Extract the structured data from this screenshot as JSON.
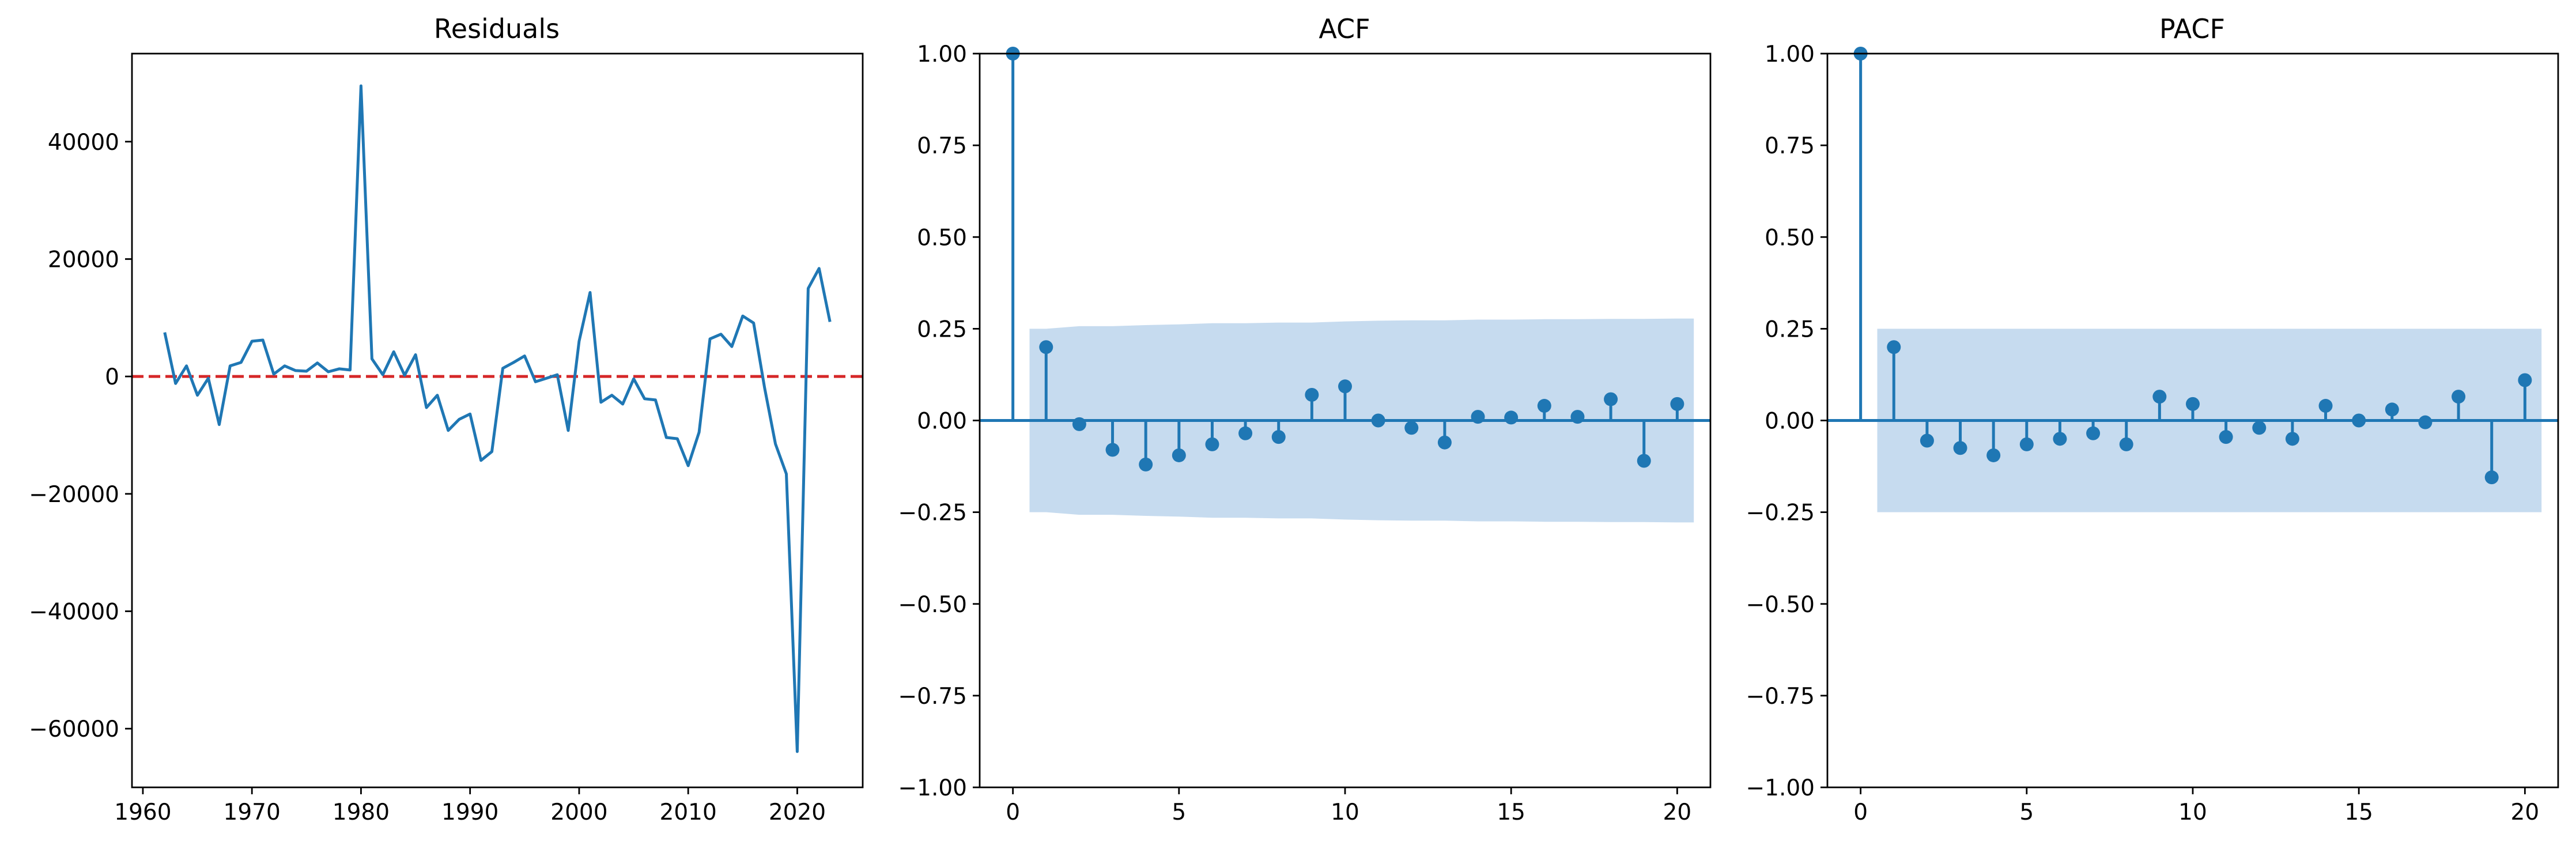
{
  "chart_data": [
    {
      "type": "line",
      "title": "Residuals",
      "xlabel": "",
      "ylabel": "",
      "xlim": [
        1959,
        2026
      ],
      "ylim": [
        -70000,
        55000
      ],
      "xticks": [
        1960,
        1970,
        1980,
        1990,
        2000,
        2010,
        2020
      ],
      "yticks": [
        -60000,
        -40000,
        -20000,
        0,
        20000,
        40000
      ],
      "zero_line": {
        "y": 0,
        "color": "#d62728",
        "style": "dashed"
      },
      "series": [
        {
          "color": "#1f77b4",
          "x": [
            1962,
            1963,
            1964,
            1965,
            1966,
            1967,
            1968,
            1969,
            1970,
            1971,
            1972,
            1973,
            1974,
            1975,
            1976,
            1977,
            1978,
            1979,
            1980,
            1981,
            1982,
            1983,
            1984,
            1985,
            1986,
            1987,
            1988,
            1989,
            1990,
            1991,
            1992,
            1993,
            1994,
            1995,
            1996,
            1997,
            1998,
            1999,
            2000,
            2001,
            2002,
            2003,
            2004,
            2005,
            2006,
            2007,
            2008,
            2009,
            2010,
            2011,
            2012,
            2013,
            2014,
            2015,
            2016,
            2017,
            2018,
            2019,
            2020,
            2021,
            2022,
            2023
          ],
          "y": [
            7500,
            -1200,
            1800,
            -3200,
            -300,
            -8200,
            1800,
            2400,
            6000,
            6200,
            400,
            1800,
            1000,
            900,
            2300,
            800,
            1300,
            1100,
            49500,
            3000,
            300,
            4200,
            200,
            3700,
            -5300,
            -3200,
            -9200,
            -7300,
            -6400,
            -14300,
            -12800,
            1400,
            2400,
            3500,
            -900,
            -300,
            300,
            -9200,
            6000,
            14300,
            -4400,
            -3200,
            -4700,
            -400,
            -3800,
            -4000,
            -10400,
            -10600,
            -15200,
            -9500,
            6400,
            7200,
            5100,
            10300,
            9100,
            -1900,
            -11500,
            -16600,
            -63900,
            15000,
            18400,
            9300
          ]
        }
      ]
    },
    {
      "type": "stem",
      "title": "ACF",
      "xlabel": "",
      "ylabel": "",
      "xlim": [
        -1,
        21
      ],
      "ylim": [
        -1.0,
        1.0
      ],
      "xticks": [
        0,
        5,
        10,
        15,
        20
      ],
      "yticks": [
        "-1.00",
        "-0.75",
        "-0.50",
        "-0.25",
        "0.00",
        "0.25",
        "0.50",
        "0.75",
        "1.00"
      ],
      "lags": [
        0,
        1,
        2,
        3,
        4,
        5,
        6,
        7,
        8,
        9,
        10,
        11,
        12,
        13,
        14,
        15,
        16,
        17,
        18,
        19,
        20
      ],
      "values": [
        1.0,
        0.2,
        -0.01,
        -0.08,
        -0.12,
        -0.095,
        -0.065,
        -0.035,
        -0.045,
        0.07,
        0.093,
        0.0,
        -0.02,
        -0.06,
        0.01,
        0.008,
        0.04,
        0.01,
        0.058,
        -0.11,
        0.045
      ],
      "confidence_band": {
        "lags": [
          0.5,
          1,
          2,
          3,
          4,
          5,
          6,
          7,
          8,
          9,
          10,
          11,
          12,
          13,
          14,
          15,
          16,
          17,
          18,
          19,
          20,
          20.5
        ],
        "upper": [
          0.25,
          0.25,
          0.257,
          0.257,
          0.26,
          0.262,
          0.265,
          0.265,
          0.267,
          0.267,
          0.27,
          0.272,
          0.273,
          0.273,
          0.275,
          0.275,
          0.276,
          0.276,
          0.277,
          0.277,
          0.278,
          0.278
        ]
      },
      "color": "#1f77b4",
      "band_color": "#c6dbef"
    },
    {
      "type": "stem",
      "title": "PACF",
      "xlabel": "",
      "ylabel": "",
      "xlim": [
        -1,
        21
      ],
      "ylim": [
        -1.0,
        1.0
      ],
      "xticks": [
        0,
        5,
        10,
        15,
        20
      ],
      "yticks": [
        "-1.00",
        "-0.75",
        "-0.50",
        "-0.25",
        "0.00",
        "0.25",
        "0.50",
        "0.75",
        "1.00"
      ],
      "lags": [
        0,
        1,
        2,
        3,
        4,
        5,
        6,
        7,
        8,
        9,
        10,
        11,
        12,
        13,
        14,
        15,
        16,
        17,
        18,
        19,
        20
      ],
      "values": [
        1.0,
        0.2,
        -0.055,
        -0.075,
        -0.095,
        -0.065,
        -0.05,
        -0.035,
        -0.065,
        0.065,
        0.045,
        -0.045,
        -0.02,
        -0.05,
        0.04,
        0.0,
        0.03,
        -0.005,
        0.065,
        -0.155,
        0.11
      ],
      "confidence_band": {
        "lags": [
          0.5,
          20.5
        ],
        "upper": [
          0.25,
          0.25
        ]
      },
      "color": "#1f77b4",
      "band_color": "#c6dbef"
    }
  ]
}
